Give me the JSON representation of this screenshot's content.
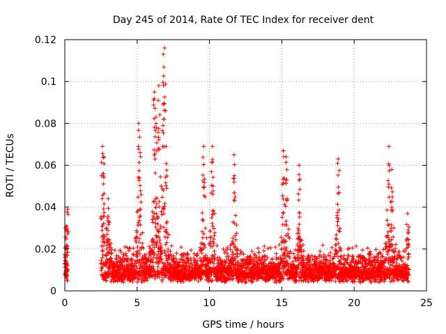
{
  "chart_data": {
    "type": "scatter",
    "title": "Day 245 of 2014, Rate Of TEC Index for receiver dent",
    "xlabel": "GPS time / hours",
    "ylabel": "ROTI / TECUs",
    "xlim": [
      0,
      25
    ],
    "ylim": [
      0,
      0.12
    ],
    "x_ticks": [
      0,
      5,
      10,
      15,
      20,
      25
    ],
    "x_tick_labels": [
      "0",
      "5",
      "10",
      "15",
      "20",
      "25"
    ],
    "y_ticks": [
      0,
      0.02,
      0.04,
      0.06,
      0.08,
      0.1,
      0.12
    ],
    "y_tick_labels": [
      "0",
      "0.02",
      "0.04",
      "0.06",
      "0.08",
      "0.1",
      "0.12"
    ],
    "grid": true,
    "marker": "+",
    "color": "#ff0000",
    "series": [
      {
        "name": "ROTI",
        "notes": "Dense scatter from ~2.5 h to ~23.8 h with a short burst at 0-0.2 h; baseline ~0.005-0.02, peaks listed below",
        "peaks": [
          {
            "x": 0.1,
            "y": 0.031
          },
          {
            "x": 0.2,
            "y": 0.039
          },
          {
            "x": 2.6,
            "y": 0.069
          },
          {
            "x": 2.7,
            "y": 0.064
          },
          {
            "x": 3.0,
            "y": 0.044
          },
          {
            "x": 5.1,
            "y": 0.08
          },
          {
            "x": 5.2,
            "y": 0.066
          },
          {
            "x": 6.2,
            "y": 0.095
          },
          {
            "x": 6.3,
            "y": 0.083
          },
          {
            "x": 6.5,
            "y": 0.098
          },
          {
            "x": 6.8,
            "y": 0.113
          },
          {
            "x": 6.9,
            "y": 0.116
          },
          {
            "x": 7.0,
            "y": 0.069
          },
          {
            "x": 9.6,
            "y": 0.069
          },
          {
            "x": 10.2,
            "y": 0.069
          },
          {
            "x": 11.7,
            "y": 0.065
          },
          {
            "x": 15.1,
            "y": 0.067
          },
          {
            "x": 15.3,
            "y": 0.064
          },
          {
            "x": 16.2,
            "y": 0.06
          },
          {
            "x": 18.9,
            "y": 0.063
          },
          {
            "x": 22.4,
            "y": 0.069
          },
          {
            "x": 22.6,
            "y": 0.058
          },
          {
            "x": 23.7,
            "y": 0.037
          }
        ]
      }
    ]
  }
}
